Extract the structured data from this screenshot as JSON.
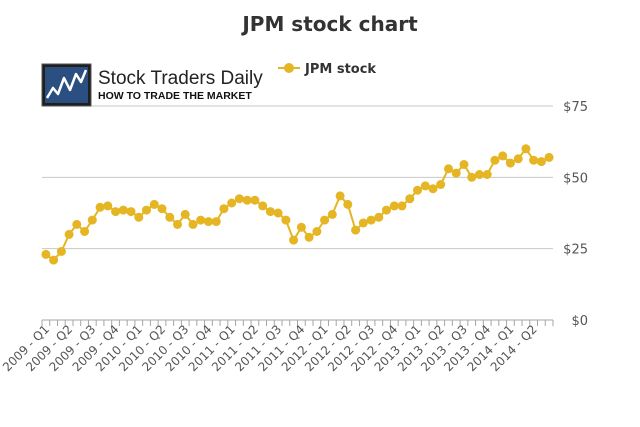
{
  "logo": {
    "main": "Stock Traders Daily",
    "sub": "HOW TO TRADE THE MARKET"
  },
  "colors": {
    "series": "#E5B523",
    "grid": "#c8c8c8",
    "axis": "#a6a6a6"
  },
  "chart_data": {
    "type": "line",
    "title": "JPM stock chart",
    "xlabel": "",
    "ylabel": "",
    "ylim": [
      0,
      75
    ],
    "yticks": [
      0,
      25,
      50,
      75
    ],
    "ytick_labels": [
      "$0",
      "$25",
      "$50",
      "$75"
    ],
    "grid": true,
    "legend_position": "top",
    "x_tick_labels": [
      "2009 - Q1",
      "2009 - Q2",
      "2009 - Q3",
      "2009 - Q4",
      "2010 - Q1",
      "2010 - Q2",
      "2010 - Q3",
      "2010 - Q4",
      "2011 - Q1",
      "2011 - Q2",
      "2011 - Q3",
      "2011 - Q4",
      "2012 - Q1",
      "2012 - Q2",
      "2012 - Q3",
      "2012 - Q4",
      "2013 - Q1",
      "2013 - Q2",
      "2013 - Q3",
      "2013 - Q4",
      "2014 - Q1",
      "2014 - Q2"
    ],
    "series": [
      {
        "name": "JPM stock",
        "values": [
          23,
          21,
          24,
          30,
          33.5,
          31,
          35,
          39.5,
          40,
          38,
          38.5,
          38,
          36,
          38.5,
          40.5,
          39,
          36,
          33.5,
          37,
          33.5,
          35,
          34.5,
          34.5,
          39,
          41,
          42.5,
          42,
          42,
          40,
          38,
          37.5,
          35,
          28,
          32.5,
          29,
          31,
          35,
          37,
          43.5,
          40.5,
          31.5,
          34,
          35,
          36,
          38.5,
          40,
          40,
          42.5,
          45.5,
          47,
          46,
          47.5,
          53,
          51.5,
          54.5,
          50,
          51,
          51,
          56,
          57.5,
          55,
          56.5,
          60,
          56,
          55.5,
          57
        ]
      }
    ]
  }
}
